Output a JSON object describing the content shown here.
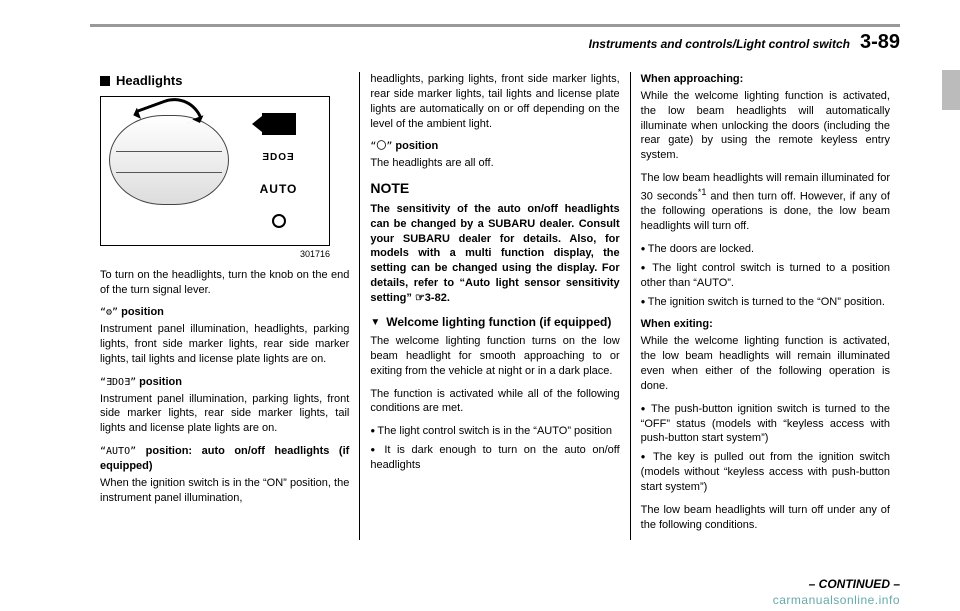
{
  "header": {
    "path": "Instruments and controls/Light control switch",
    "page": "3-89"
  },
  "col1": {
    "section_title": "Headlights",
    "figure_id": "301716",
    "figure_labels": {
      "auto": "AUTO",
      "parking_glyph": "ƎDOƎ"
    },
    "p_intro": "To turn on the headlights, turn the knob on the end of the turn signal lever.",
    "pos1_sym": "“⚙”",
    "pos1_label": " position",
    "pos1_text": "Instrument panel illumination, headlights, parking lights, front side marker lights, rear side marker lights, tail lights and license plate lights are on.",
    "pos2_sym": "“ƎDOƎ”",
    "pos2_label": " position",
    "pos2_text": "Instrument panel illumination, parking lights, front side marker lights, rear side marker lights, tail lights and license plate lights are on.",
    "pos3_sym": "“AUTO”",
    "pos3_label": " position: auto on/off headlights (if equipped)",
    "pos3_text": "When the ignition switch is in the “ON” position, the instrument panel illumination,"
  },
  "col2": {
    "p_cont": "headlights, parking lights, front side mar­ker lights, rear side marker lights, tail lights and license plate lights are automatically on or off depending on the level of the ambient light.",
    "pos4_sym": "“〇”",
    "pos4_label": " position",
    "pos4_text": "The headlights are all off.",
    "note_title": "NOTE",
    "note_body": "The sensitivity of the auto on/off head­lights can be changed by a SUBARU dealer. Consult your SUBARU dealer for details. Also, for models with a multi function display, the setting can be changed using the display. For details, refer to “Auto light sensor sensitivity setting” ☞3-82.",
    "sub_title": "Welcome lighting function (if equipped)",
    "wlf_p1": "The welcome lighting function turns on the low beam headlight for smooth approach­ing to or exiting from the vehicle at night or in a dark place.",
    "wlf_p2": "The function is activated while all of the following conditions are met.",
    "wlf_b1": "The light control switch is in the “AUTO” position",
    "wlf_b2": "It is dark enough to turn on the auto on/off headlights"
  },
  "col3": {
    "approach_h": "When approaching:",
    "approach_p1": "While the welcome lighting function is activated, the low beam headlights will automatically illuminate when unlocking the doors (including the rear gate) by using the remote keyless entry system.",
    "approach_p2a": "The low beam headlights will remain illuminated for 30 seconds",
    "approach_sup": "*1",
    "approach_p2b": " and then turn off. However, if any of the following operations is done, the low beam head­lights will turn off.",
    "approach_b1": "The doors are locked.",
    "approach_b2": "The light control switch is turned to a position other than “AUTO”.",
    "approach_b3": "The ignition switch is turned to the “ON” position.",
    "exit_h": "When exiting:",
    "exit_p1": "While the welcome lighting function is activated, the low beam headlights will remain illuminated even when either of the following operation is done.",
    "exit_b1": "The push-button ignition switch is turned to the “OFF” status (models with “keyless access with push-button start system”)",
    "exit_b2": "The key is pulled out from the ignition switch (models without “keyless access with push-button start system”)",
    "exit_p2": "The low beam headlights will turn off under any of the following conditions."
  },
  "footer": {
    "continued": "– CONTINUED –",
    "watermark": "carmanualsonline.info"
  }
}
